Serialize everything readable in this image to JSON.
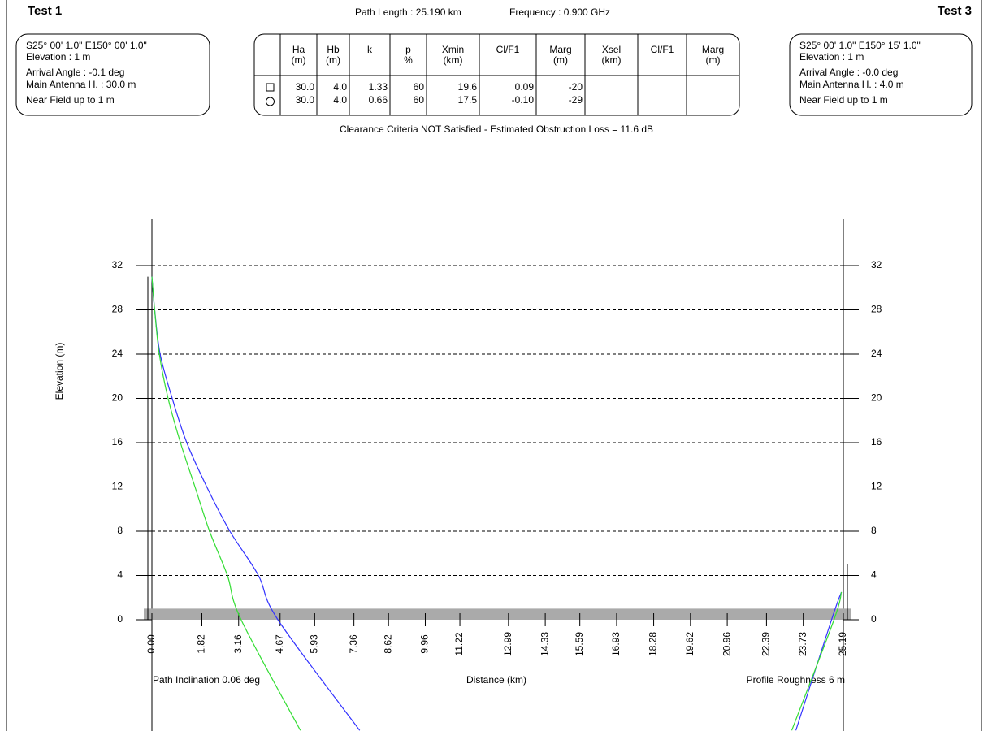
{
  "header": {
    "left_title": "Test 1",
    "right_title": "Test 3",
    "path_length": "Path Length : 25.190 km",
    "frequency": "Frequency  : 0.900 GHz",
    "status": "Clearance Criteria NOT Satisfied   -   Estimated Obstruction Loss = 11.6 dB"
  },
  "left_site": [
    "S25° 00' 1.0\"   E150° 00' 1.0\"",
    "Elevation : 1 m",
    "Arrival Angle : -0.1 deg",
    "Main Antenna H. : 30.0 m",
    "Near Field up to 1 m"
  ],
  "right_site": [
    "S25° 00' 1.0\"   E150° 15' 1.0\"",
    "Elevation : 1 m",
    "Arrival Angle : -0.0 deg",
    "Main Antenna H. : 4.0 m",
    "Near Field up to 1 m"
  ],
  "table": {
    "columns": [
      [
        "Ha",
        "(m)"
      ],
      [
        "Hb",
        "(m)"
      ],
      [
        "k"
      ],
      [
        "p",
        "%"
      ],
      [
        "Xmin",
        "(km)"
      ],
      [
        "Cl/F1"
      ],
      [
        "Marg",
        "(m)"
      ],
      [
        "Xsel",
        "(km)"
      ],
      [
        "Cl/F1"
      ],
      [
        "Marg",
        "(m)"
      ]
    ],
    "rows": [
      [
        "30.0",
        "4.0",
        "1.33",
        "60",
        "19.6",
        "0.09",
        "-20"
      ],
      [
        "30.0",
        "4.0",
        "0.66",
        "60",
        "17.5",
        "-0.10",
        "-29"
      ]
    ]
  },
  "chart_data": {
    "type": "line",
    "xlabel": "Distance (km)",
    "ylabel": "Elevation (m)",
    "left_note": "Path Inclination 0.06 deg",
    "right_note": "Profile Roughness 6 m",
    "xlim": [
      0,
      25.19
    ],
    "ylim": [
      0,
      32
    ],
    "xticks": [
      {
        "value": 0,
        "label": "0.00"
      },
      1.82,
      3.16,
      4.67,
      5.93,
      7.36,
      8.62,
      9.96,
      11.22,
      12.99,
      14.33,
      15.59,
      16.93,
      18.28,
      19.62,
      20.96,
      22.39,
      23.73,
      25.19
    ],
    "yticks": [
      0,
      4,
      8,
      12,
      16,
      20,
      24,
      28,
      32
    ],
    "grid": true,
    "ground": 1,
    "antennas": [
      {
        "x": 0,
        "height": 31
      },
      {
        "x": 25.19,
        "height": 5
      }
    ],
    "series": [
      {
        "color": "#3333ff",
        "x": [
          0,
          0.1,
          0.3,
          0.74,
          1.27,
          2.0,
          2.84,
          3.88,
          4.59,
          7.57,
          null,
          23.46,
          24.76,
          25.12
        ],
        "values": [
          31,
          28,
          24,
          20,
          16,
          12,
          8,
          4,
          0,
          -10,
          null,
          -10,
          0,
          2.5
        ]
      },
      {
        "color": "#33dd33",
        "x": [
          0,
          0.1,
          0.27,
          0.59,
          1.04,
          1.57,
          2.1,
          2.75,
          3.25,
          5.41,
          null,
          23.31,
          24.85,
          25.12
        ],
        "values": [
          31,
          28,
          24,
          20,
          16,
          12,
          8,
          4,
          0,
          -10,
          null,
          -10,
          0,
          2.5
        ]
      }
    ]
  }
}
